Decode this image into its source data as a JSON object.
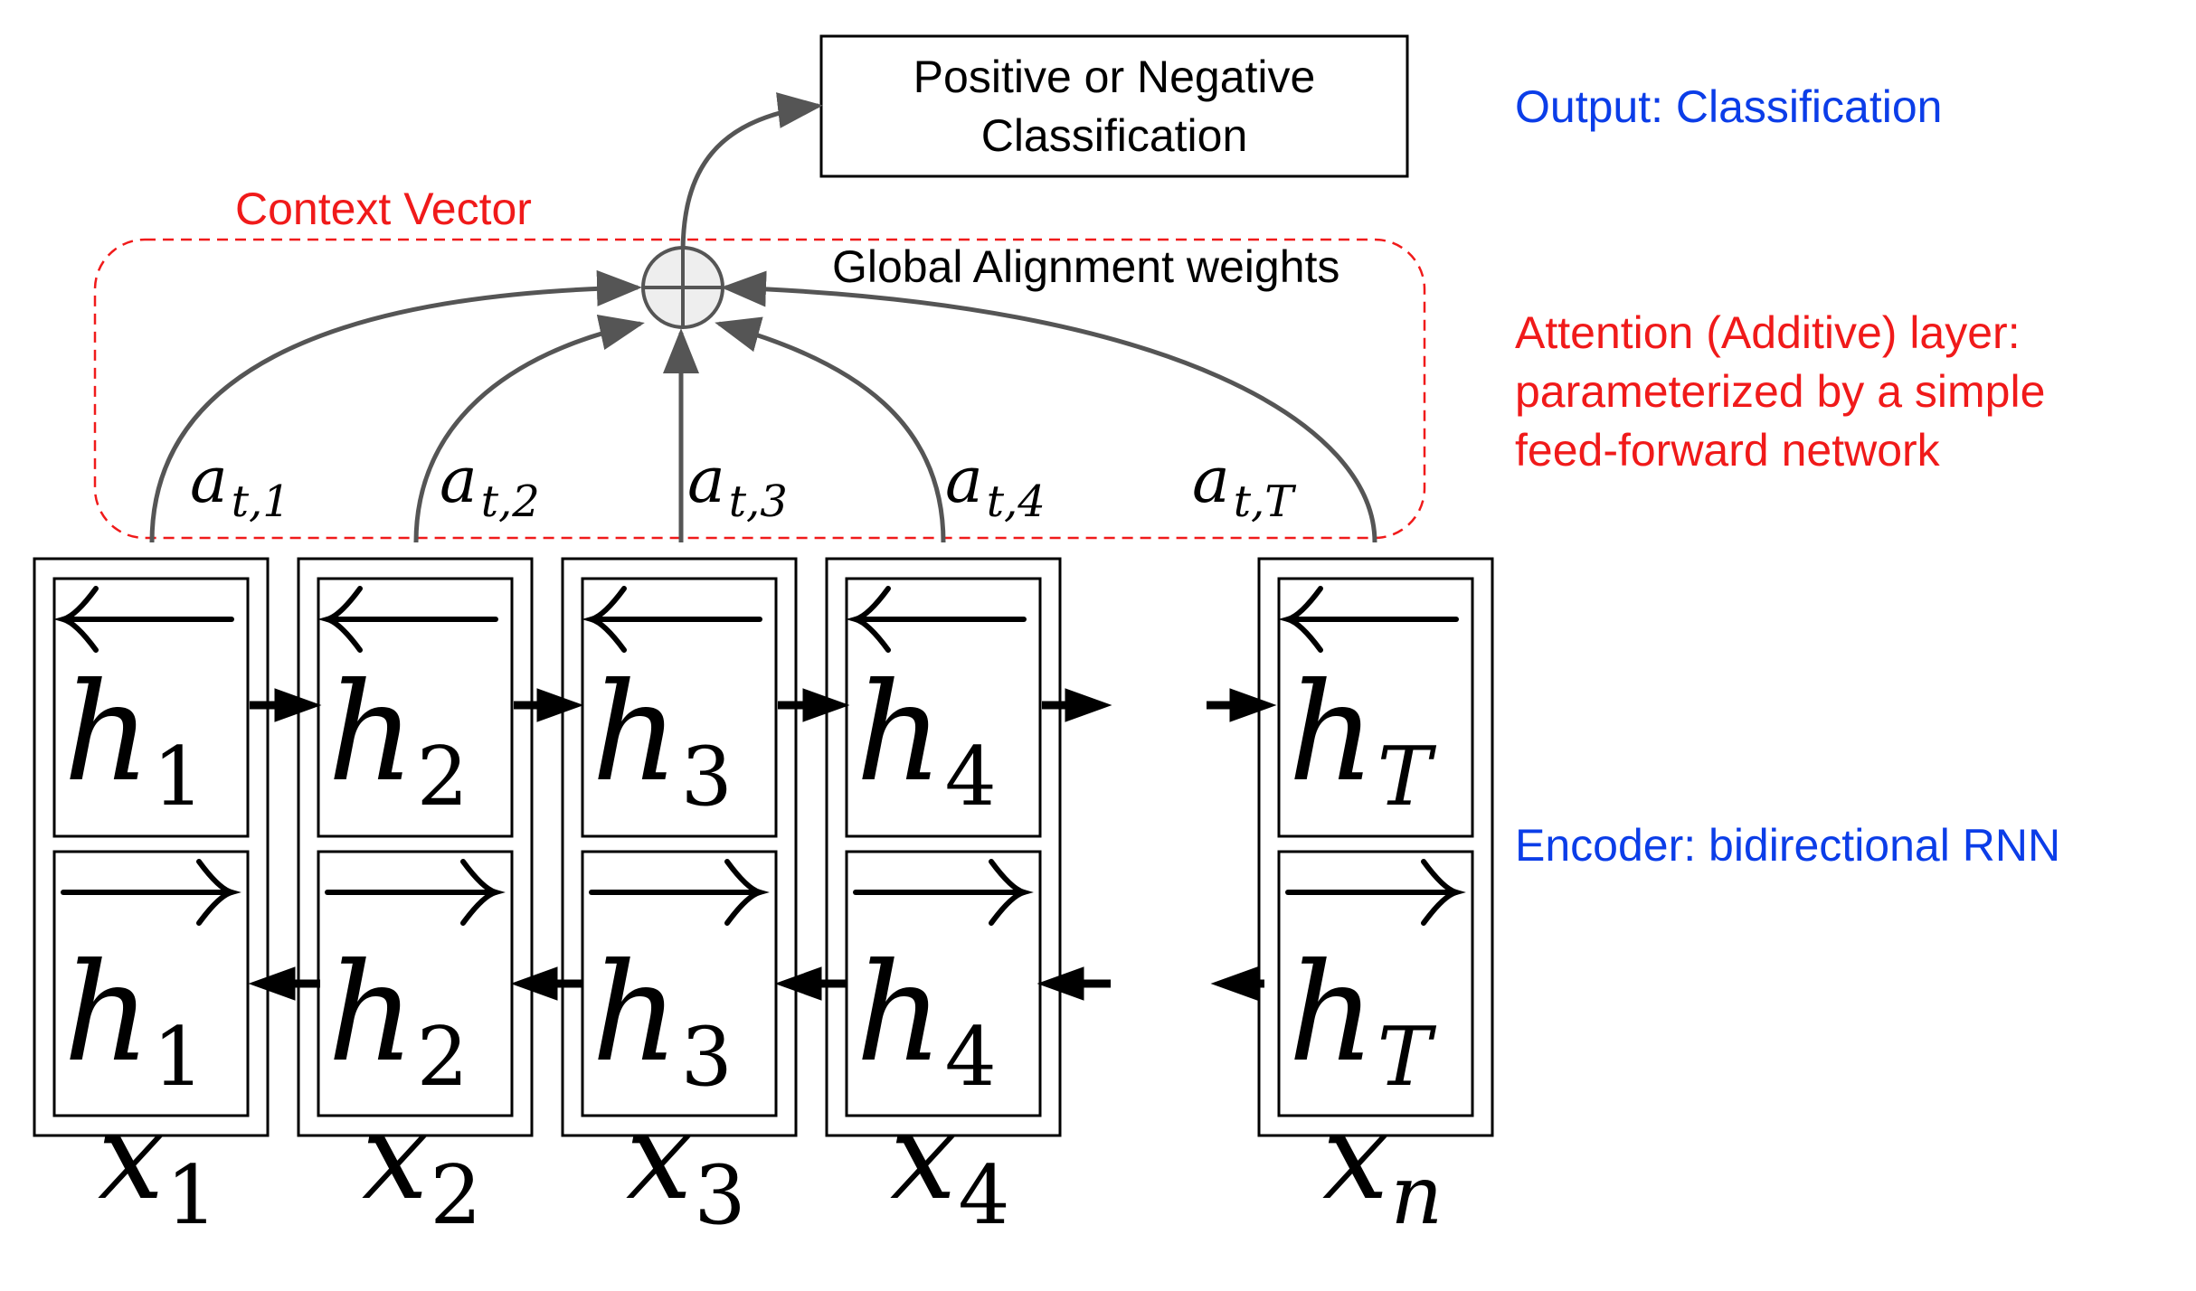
{
  "output_box": {
    "line1": "Positive or Negative",
    "line2": "Classification"
  },
  "context_label": "Context Vector",
  "alignment_label": "Global Alignment weights",
  "annotations": {
    "output": "Output: Classification",
    "attention_line1": "Attention (Additive) layer:",
    "attention_line2": "parameterized by a simple",
    "attention_line3": "feed-forward network",
    "encoder": "Encoder: bidirectional RNN"
  },
  "cells": [
    {
      "h_sub": "1",
      "x_sub": "1",
      "a_sub": "t,1"
    },
    {
      "h_sub": "2",
      "x_sub": "2",
      "a_sub": "t,2"
    },
    {
      "h_sub": "3",
      "x_sub": "3",
      "a_sub": "t,3"
    },
    {
      "h_sub": "4",
      "x_sub": "4",
      "a_sub": "t,4"
    },
    {
      "h_sub": "T",
      "x_sub": "n",
      "a_sub": "t,T"
    }
  ],
  "symbols": {
    "h": "h",
    "x": "x",
    "a": "a"
  },
  "colors": {
    "blue": "#0b3de8",
    "red": "#f01a1a",
    "gray": "#555555",
    "black": "#000000"
  }
}
